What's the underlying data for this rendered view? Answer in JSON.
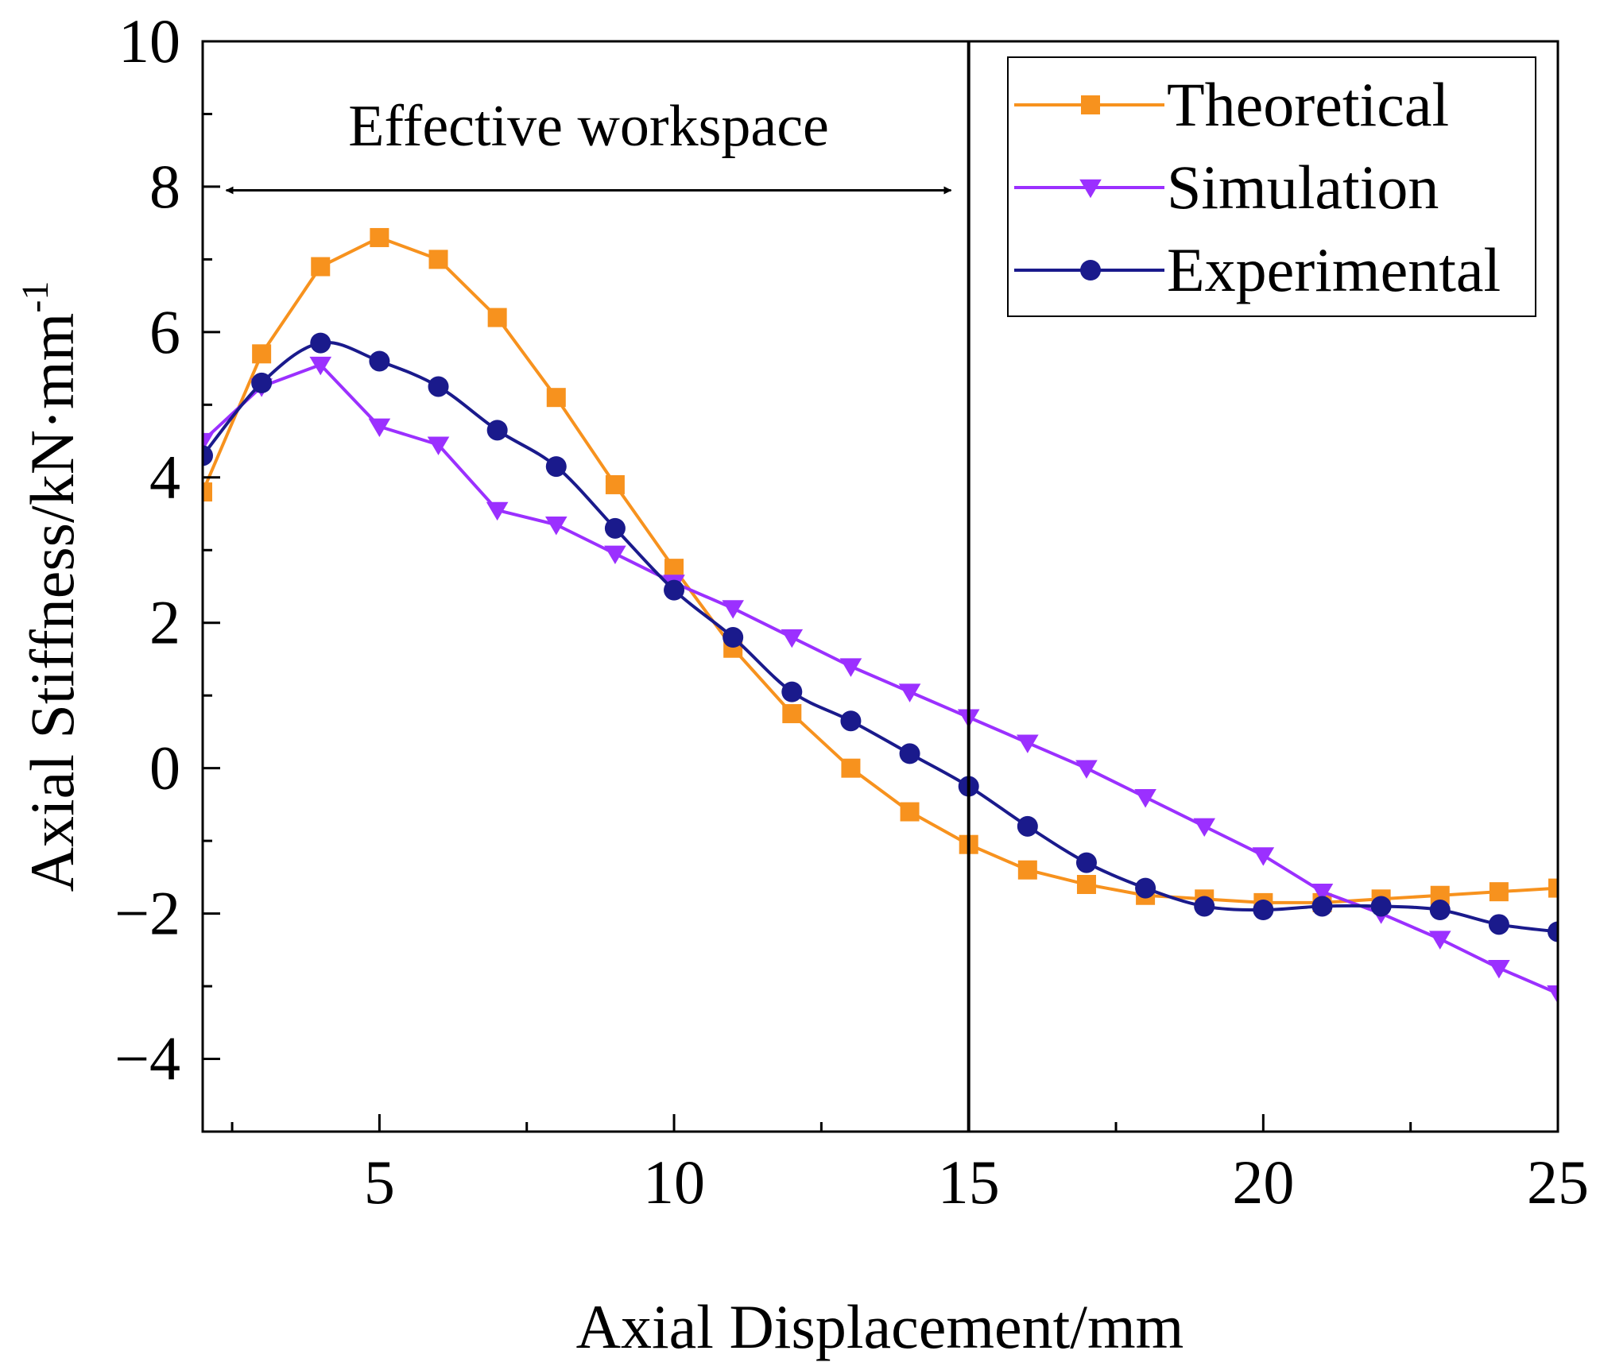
{
  "chart_data": {
    "type": "line",
    "title": "",
    "xlabel": "Axial Displacement/mm",
    "ylabel": "Axial Stiffness/kN·mm",
    "ylabel_superscript": "-1",
    "xlim": [
      2,
      25
    ],
    "ylim": [
      -5,
      10
    ],
    "xticks": [
      5,
      10,
      15,
      20,
      25
    ],
    "xtick_labels": [
      "5",
      "10",
      "15",
      "20",
      "25"
    ],
    "yticks": [
      -4,
      -2,
      0,
      2,
      4,
      6,
      8,
      10
    ],
    "ytick_labels": [
      "−4",
      "−2",
      "0",
      "2",
      "4",
      "6",
      "8",
      "10"
    ],
    "grid": false,
    "legend_position": "top-right",
    "annotations": [
      {
        "text": "Effective workspace",
        "kind": "double-arrow",
        "x_from": 2.4,
        "x_to": 14.7,
        "y": 7.95,
        "label_y": 8.85
      }
    ],
    "vertical_lines": [
      15
    ],
    "series": [
      {
        "name": "Theoretical",
        "color": "#f7921e",
        "marker": "square",
        "x": [
          2,
          3,
          4,
          5,
          6,
          7,
          8,
          9,
          10,
          11,
          12,
          13,
          14,
          15,
          16,
          17,
          18,
          19,
          20,
          21,
          22,
          23,
          24,
          25
        ],
        "y": [
          3.8,
          5.7,
          6.9,
          7.3,
          7.0,
          6.2,
          5.1,
          3.9,
          2.75,
          1.65,
          0.75,
          0.0,
          -0.6,
          -1.05,
          -1.4,
          -1.6,
          -1.75,
          -1.8,
          -1.85,
          -1.85,
          -1.8,
          -1.75,
          -1.7,
          -1.65
        ]
      },
      {
        "name": "Simulation",
        "color": "#9b30ff",
        "marker": "triangle-down",
        "x": [
          2,
          3,
          4,
          5,
          6,
          7,
          8,
          9,
          10,
          11,
          12,
          13,
          14,
          15,
          16,
          17,
          18,
          19,
          20,
          21,
          22,
          23,
          24,
          25
        ],
        "y": [
          4.5,
          5.25,
          5.55,
          4.7,
          4.45,
          3.55,
          3.35,
          2.95,
          2.55,
          2.2,
          1.8,
          1.4,
          1.05,
          0.7,
          0.35,
          0.0,
          -0.4,
          -0.8,
          -1.2,
          -1.7,
          -2.0,
          -2.35,
          -2.75,
          -3.1
        ]
      },
      {
        "name": "Experimental",
        "color": "#1a1a8c",
        "marker": "circle",
        "x": [
          2,
          3,
          4,
          5,
          6,
          7,
          8,
          9,
          10,
          11,
          12,
          13,
          14,
          15,
          16,
          17,
          18,
          19,
          20,
          21,
          22,
          23,
          24,
          25
        ],
        "y": [
          4.3,
          5.3,
          5.85,
          5.6,
          5.25,
          4.65,
          4.15,
          3.3,
          2.45,
          1.8,
          1.05,
          0.65,
          0.2,
          -0.25,
          -0.8,
          -1.3,
          -1.65,
          -1.9,
          -1.95,
          -1.9,
          -1.9,
          -1.95,
          -2.15,
          -2.25
        ]
      }
    ]
  }
}
